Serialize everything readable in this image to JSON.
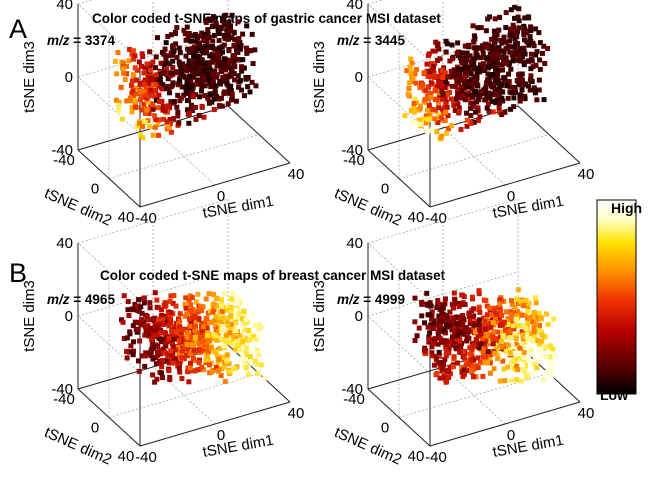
{
  "figure": {
    "panels": [
      {
        "letter": "A",
        "title": "Color coded t-SNE maps of gastric cancer MSI dataset",
        "subplots": [
          {
            "mz_prefix": "m/z",
            "mz_value": "= 3374"
          },
          {
            "mz_prefix": "m/z",
            "mz_value": "= 3445"
          }
        ]
      },
      {
        "letter": "B",
        "title": "Color coded t-SNE maps of breast cancer MSI dataset",
        "subplots": [
          {
            "mz_prefix": "m/z",
            "mz_value": "= 4965"
          },
          {
            "mz_prefix": "m/z",
            "mz_value": "= 4999"
          }
        ]
      }
    ],
    "colorbar": {
      "high_label": "High",
      "low_label": "Low",
      "colormap": [
        "#000000",
        "#5a0000",
        "#b40000",
        "#f03000",
        "#ff8a00",
        "#ffe000",
        "#ffffc8",
        "#ffffff"
      ]
    }
  },
  "chart_data": [
    {
      "type": "scatter",
      "title": "m/z = 3374",
      "xlabel": "tSNE dim1",
      "ylabel": "tSNE dim2",
      "zlabel": "tSNE dim3",
      "xlim": [
        -40,
        40
      ],
      "ylim": [
        -40,
        40
      ],
      "zlim": [
        -40,
        40
      ],
      "ticks": [
        "-40",
        "0",
        "40"
      ],
      "grid": true,
      "hot_region": "left"
    },
    {
      "type": "scatter",
      "title": "m/z = 3445",
      "xlabel": "tSNE dim1",
      "ylabel": "tSNE dim2",
      "zlabel": "tSNE dim3",
      "xlim": [
        -40,
        40
      ],
      "ylim": [
        -40,
        40
      ],
      "zlim": [
        -40,
        40
      ],
      "ticks": [
        "-40",
        "0",
        "40"
      ],
      "grid": true,
      "hot_region": "left"
    },
    {
      "type": "scatter",
      "title": "m/z = 4965",
      "xlabel": "tSNE dim1",
      "ylabel": "tSNE dim2",
      "zlabel": "tSNE dim3",
      "xlim": [
        -40,
        40
      ],
      "ylim": [
        -40,
        40
      ],
      "zlim": [
        -40,
        40
      ],
      "ticks": [
        "-40",
        "0",
        "40"
      ],
      "grid": true,
      "hot_region": "right"
    },
    {
      "type": "scatter",
      "title": "m/z = 4999",
      "xlabel": "tSNE dim1",
      "ylabel": "tSNE dim2",
      "zlabel": "tSNE dim3",
      "xlim": [
        -40,
        40
      ],
      "ylim": [
        -40,
        40
      ],
      "zlim": [
        -40,
        40
      ],
      "ticks": [
        "-40",
        "0",
        "40"
      ],
      "grid": true,
      "hot_region": "lower-right"
    }
  ]
}
